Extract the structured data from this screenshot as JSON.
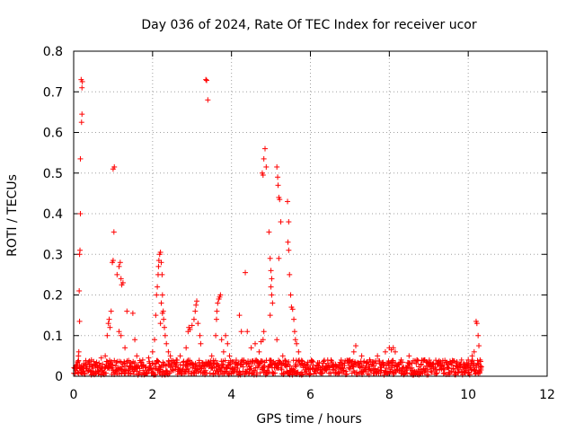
{
  "chart_data": {
    "type": "scatter",
    "title": "Day 036 of 2024, Rate Of TEC Index for receiver ucor",
    "xlabel": "GPS time / hours",
    "ylabel": "ROTI / TECUs",
    "xlim": [
      0,
      12
    ],
    "ylim": [
      0,
      0.8
    ],
    "x_ticks": [
      0,
      2,
      4,
      6,
      8,
      10,
      12
    ],
    "x_tick_labels": [
      "0",
      "2",
      "4",
      "6",
      "8",
      "10",
      "12"
    ],
    "y_ticks": [
      0,
      0.1,
      0.2,
      0.3,
      0.4,
      0.5,
      0.6,
      0.7,
      0.8
    ],
    "y_tick_labels": [
      "0",
      "0.1",
      "0.2",
      "0.3",
      "0.4",
      "0.5",
      "0.6",
      "0.7",
      "0.8"
    ],
    "grid": true,
    "marker": "+",
    "color": "#ff0000",
    "series": [
      {
        "name": "ROTI",
        "points": [
          [
            0.08,
            0.02
          ],
          [
            0.1,
            0.035
          ],
          [
            0.12,
            0.05
          ],
          [
            0.13,
            0.06
          ],
          [
            0.15,
            0.135
          ],
          [
            0.14,
            0.21
          ],
          [
            0.15,
            0.3
          ],
          [
            0.16,
            0.31
          ],
          [
            0.17,
            0.4
          ],
          [
            0.17,
            0.535
          ],
          [
            0.2,
            0.625
          ],
          [
            0.21,
            0.645
          ],
          [
            0.19,
            0.73
          ],
          [
            0.22,
            0.725
          ],
          [
            0.21,
            0.71
          ],
          [
            0.3,
            0.03
          ],
          [
            0.45,
            0.04
          ],
          [
            0.6,
            0.025
          ],
          [
            0.7,
            0.045
          ],
          [
            0.8,
            0.05
          ],
          [
            0.85,
            0.1
          ],
          [
            0.88,
            0.13
          ],
          [
            0.9,
            0.14
          ],
          [
            0.92,
            0.12
          ],
          [
            0.95,
            0.16
          ],
          [
            0.98,
            0.28
          ],
          [
            1.0,
            0.285
          ],
          [
            1.02,
            0.355
          ],
          [
            1.0,
            0.51
          ],
          [
            1.03,
            0.515
          ],
          [
            1.1,
            0.25
          ],
          [
            1.15,
            0.27
          ],
          [
            1.18,
            0.28
          ],
          [
            1.2,
            0.24
          ],
          [
            1.22,
            0.225
          ],
          [
            1.25,
            0.23
          ],
          [
            1.15,
            0.11
          ],
          [
            1.2,
            0.1
          ],
          [
            1.3,
            0.07
          ],
          [
            1.35,
            0.16
          ],
          [
            1.5,
            0.155
          ],
          [
            1.55,
            0.09
          ],
          [
            1.6,
            0.05
          ],
          [
            1.75,
            0.04
          ],
          [
            1.9,
            0.045
          ],
          [
            2.0,
            0.06
          ],
          [
            2.05,
            0.09
          ],
          [
            2.08,
            0.15
          ],
          [
            2.1,
            0.2
          ],
          [
            2.12,
            0.22
          ],
          [
            2.14,
            0.25
          ],
          [
            2.15,
            0.27
          ],
          [
            2.16,
            0.285
          ],
          [
            2.18,
            0.3
          ],
          [
            2.2,
            0.305
          ],
          [
            2.22,
            0.28
          ],
          [
            2.24,
            0.25
          ],
          [
            2.25,
            0.2
          ],
          [
            2.27,
            0.16
          ],
          [
            2.28,
            0.14
          ],
          [
            2.3,
            0.12
          ],
          [
            2.32,
            0.1
          ],
          [
            2.35,
            0.08
          ],
          [
            2.4,
            0.06
          ],
          [
            2.45,
            0.05
          ],
          [
            2.2,
            0.13
          ],
          [
            2.22,
            0.18
          ],
          [
            2.25,
            0.155
          ],
          [
            2.6,
            0.04
          ],
          [
            2.7,
            0.05
          ],
          [
            2.85,
            0.07
          ],
          [
            2.9,
            0.11
          ],
          [
            2.92,
            0.12
          ],
          [
            2.95,
            0.115
          ],
          [
            3.0,
            0.125
          ],
          [
            3.05,
            0.14
          ],
          [
            3.08,
            0.16
          ],
          [
            3.1,
            0.175
          ],
          [
            3.12,
            0.185
          ],
          [
            3.15,
            0.13
          ],
          [
            3.2,
            0.1
          ],
          [
            3.22,
            0.08
          ],
          [
            3.35,
            0.73
          ],
          [
            3.37,
            0.728
          ],
          [
            3.4,
            0.68
          ],
          [
            3.5,
            0.05
          ],
          [
            3.6,
            0.1
          ],
          [
            3.62,
            0.14
          ],
          [
            3.63,
            0.16
          ],
          [
            3.65,
            0.18
          ],
          [
            3.68,
            0.19
          ],
          [
            3.7,
            0.195
          ],
          [
            3.72,
            0.2
          ],
          [
            3.75,
            0.09
          ],
          [
            3.8,
            0.06
          ],
          [
            3.85,
            0.1
          ],
          [
            3.9,
            0.08
          ],
          [
            3.95,
            0.05
          ],
          [
            4.1,
            0.03
          ],
          [
            4.2,
            0.15
          ],
          [
            4.25,
            0.11
          ],
          [
            4.35,
            0.255
          ],
          [
            4.4,
            0.11
          ],
          [
            4.5,
            0.07
          ],
          [
            4.6,
            0.08
          ],
          [
            4.7,
            0.06
          ],
          [
            4.75,
            0.085
          ],
          [
            4.8,
            0.09
          ],
          [
            4.82,
            0.11
          ],
          [
            4.78,
            0.5
          ],
          [
            4.8,
            0.495
          ],
          [
            4.82,
            0.535
          ],
          [
            4.85,
            0.56
          ],
          [
            4.88,
            0.515
          ],
          [
            4.95,
            0.355
          ],
          [
            4.98,
            0.29
          ],
          [
            5.0,
            0.26
          ],
          [
            5.02,
            0.2
          ],
          [
            5.04,
            0.18
          ],
          [
            4.98,
            0.15
          ],
          [
            5.0,
            0.22
          ],
          [
            5.02,
            0.24
          ],
          [
            5.15,
            0.515
          ],
          [
            5.17,
            0.49
          ],
          [
            5.18,
            0.47
          ],
          [
            5.2,
            0.44
          ],
          [
            5.22,
            0.435
          ],
          [
            5.25,
            0.38
          ],
          [
            5.2,
            0.29
          ],
          [
            5.15,
            0.09
          ],
          [
            5.3,
            0.05
          ],
          [
            5.42,
            0.43
          ],
          [
            5.45,
            0.38
          ],
          [
            5.43,
            0.33
          ],
          [
            5.45,
            0.31
          ],
          [
            5.47,
            0.25
          ],
          [
            5.5,
            0.2
          ],
          [
            5.52,
            0.17
          ],
          [
            5.55,
            0.165
          ],
          [
            5.58,
            0.14
          ],
          [
            5.6,
            0.11
          ],
          [
            5.62,
            0.09
          ],
          [
            5.65,
            0.08
          ],
          [
            5.7,
            0.06
          ],
          [
            5.8,
            0.03
          ],
          [
            6.0,
            0.02
          ],
          [
            6.2,
            0.025
          ],
          [
            6.4,
            0.02
          ],
          [
            6.6,
            0.025
          ],
          [
            6.8,
            0.03
          ],
          [
            7.0,
            0.04
          ],
          [
            7.1,
            0.06
          ],
          [
            7.15,
            0.075
          ],
          [
            7.3,
            0.05
          ],
          [
            7.5,
            0.04
          ],
          [
            7.7,
            0.05
          ],
          [
            7.9,
            0.06
          ],
          [
            8.0,
            0.07
          ],
          [
            8.05,
            0.065
          ],
          [
            8.1,
            0.07
          ],
          [
            8.15,
            0.06
          ],
          [
            8.3,
            0.04
          ],
          [
            8.5,
            0.05
          ],
          [
            8.7,
            0.04
          ],
          [
            8.9,
            0.04
          ],
          [
            9.1,
            0.03
          ],
          [
            9.3,
            0.035
          ],
          [
            9.5,
            0.03
          ],
          [
            9.7,
            0.025
          ],
          [
            9.9,
            0.03
          ],
          [
            10.0,
            0.04
          ],
          [
            10.1,
            0.05
          ],
          [
            10.15,
            0.06
          ],
          [
            10.2,
            0.135
          ],
          [
            10.22,
            0.13
          ],
          [
            10.25,
            0.1
          ],
          [
            10.27,
            0.075
          ],
          [
            10.3,
            0.04
          ],
          [
            10.32,
            0.02
          ]
        ],
        "base_band": {
          "x_start": 0.0,
          "x_end": 10.32,
          "y_low": 0.0,
          "y_high": 0.04
        }
      }
    ]
  }
}
